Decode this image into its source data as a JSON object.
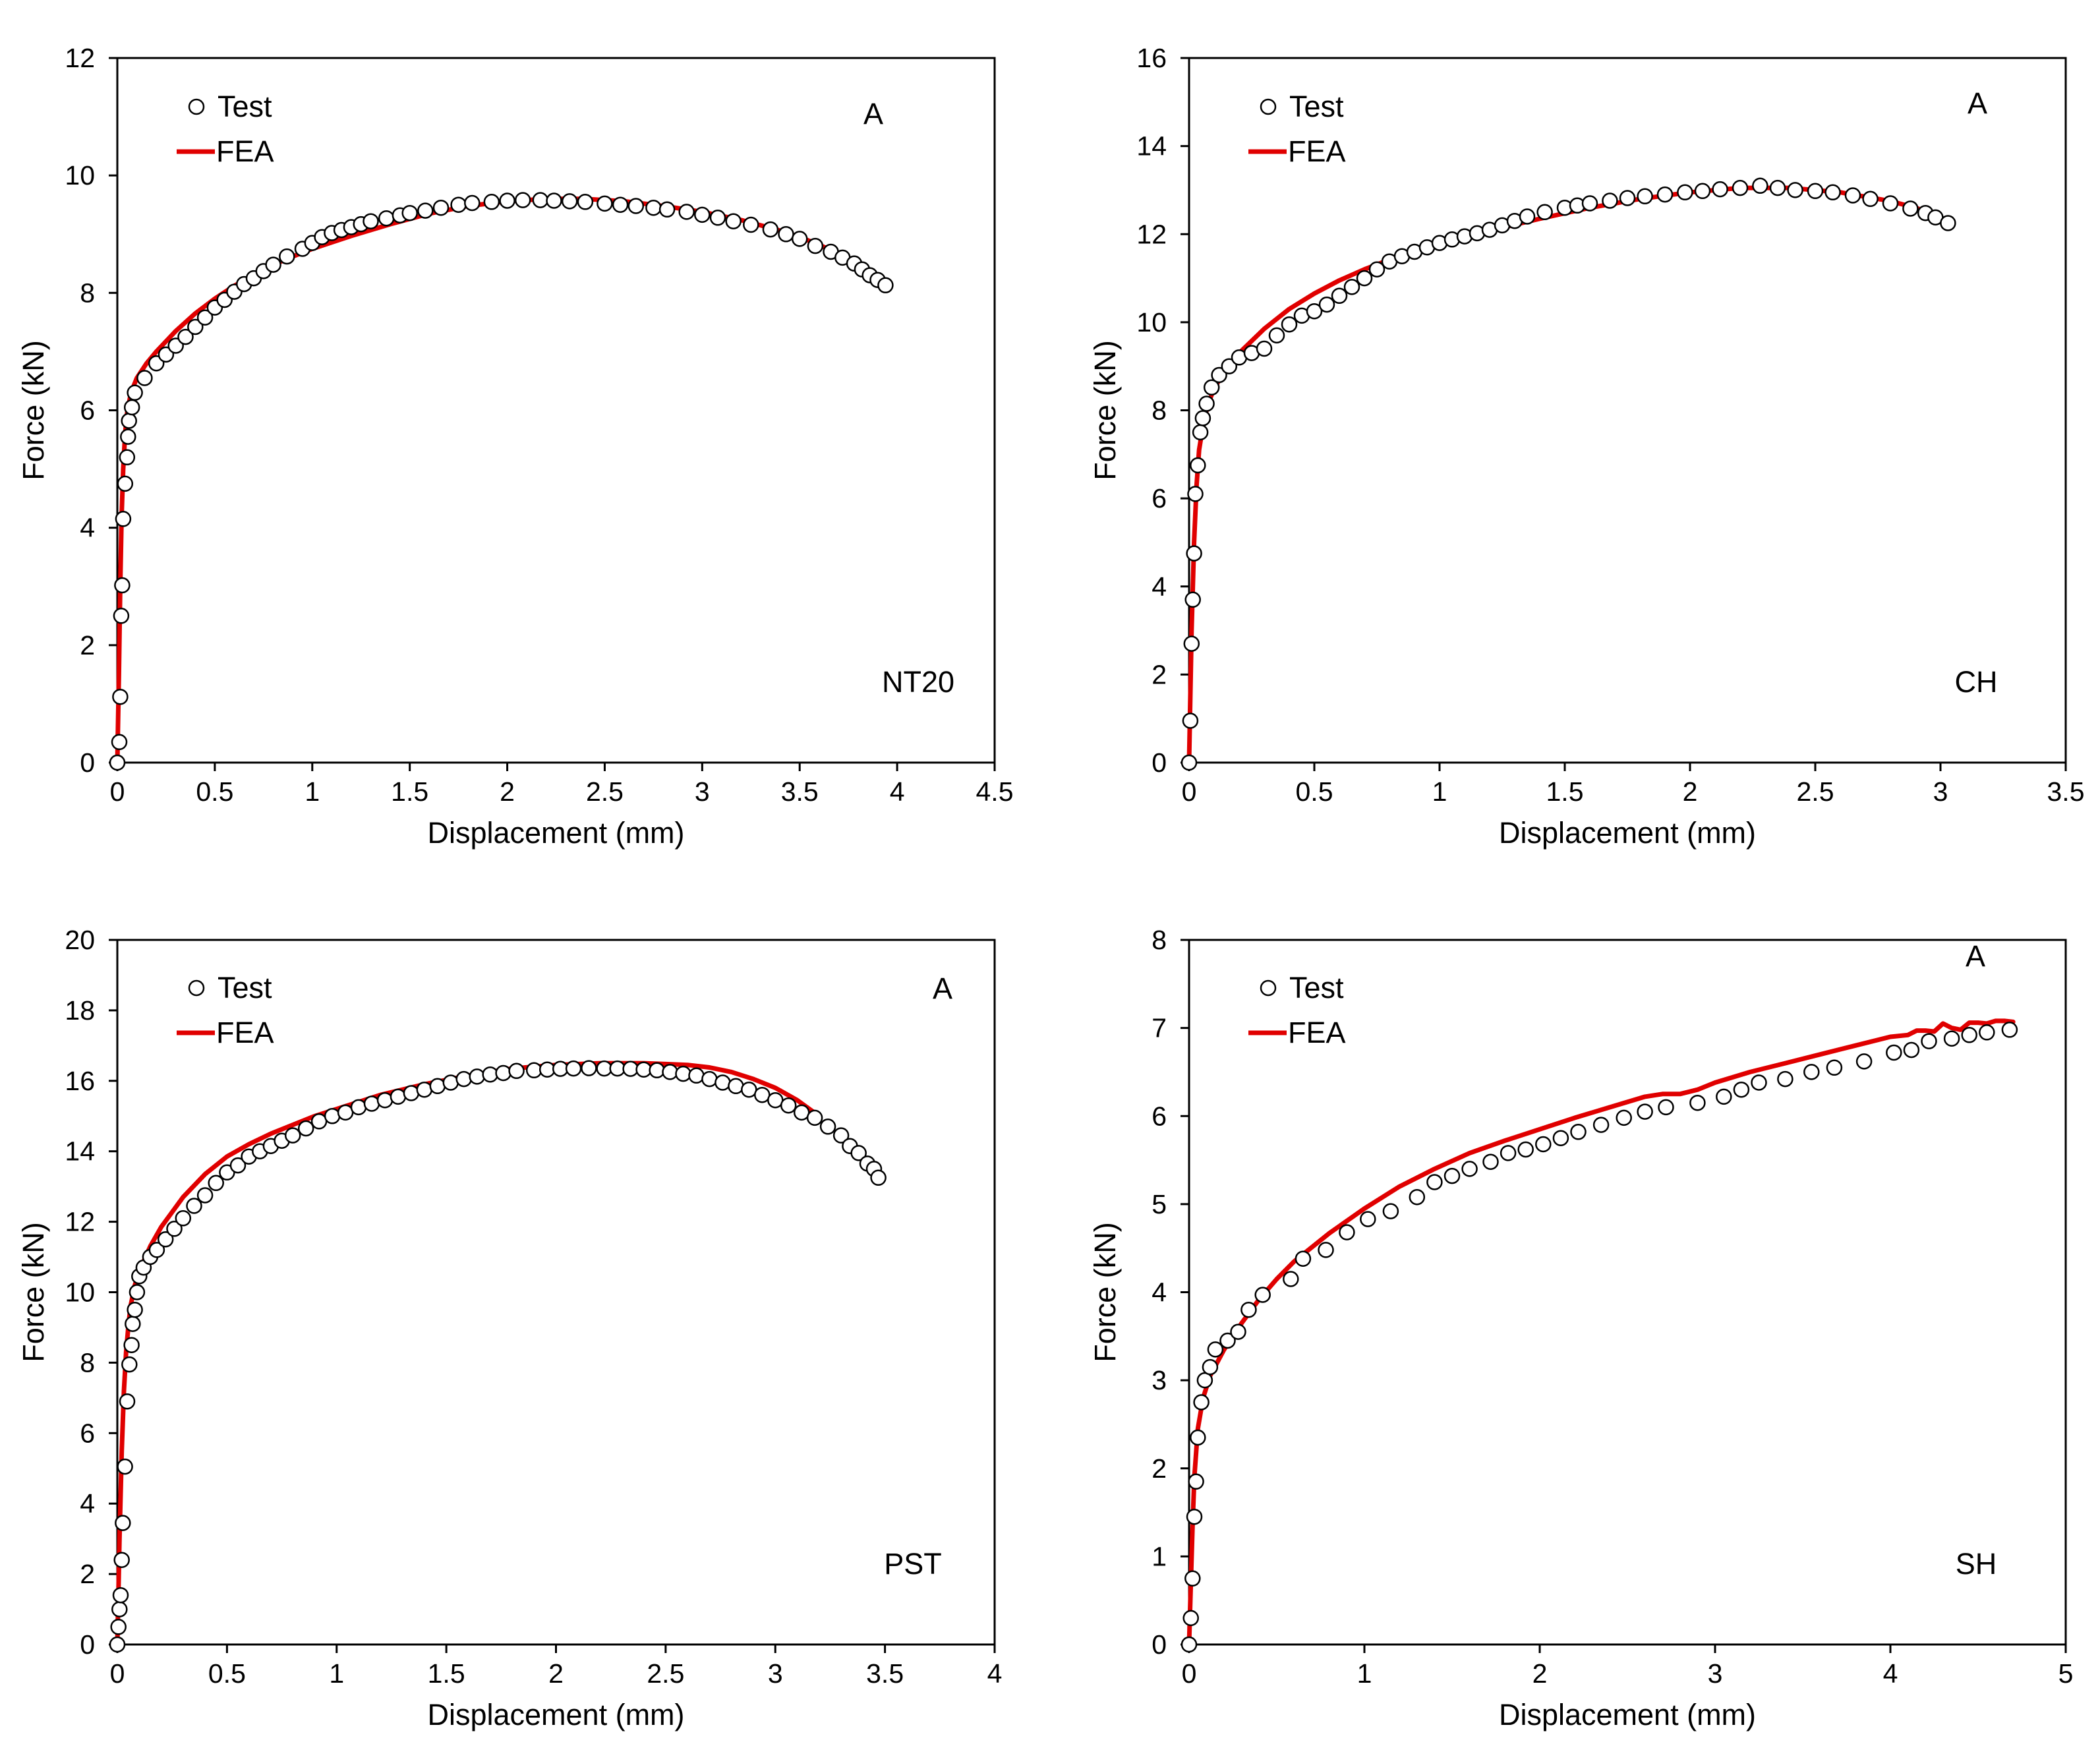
{
  "chart_data": [
    {
      "type": "scatter+line",
      "panel": "top-left",
      "xlabel": "Displacement (mm)",
      "ylabel": "Force (kN)",
      "xlim": [
        0,
        4.5
      ],
      "ylim": [
        0,
        12
      ],
      "xticks": [
        0,
        0.5,
        1,
        1.5,
        2,
        2.5,
        3,
        3.5,
        4,
        4.5
      ],
      "yticks": [
        0,
        2,
        4,
        6,
        8,
        10,
        12
      ],
      "xtick_labels": [
        "0",
        "0.5",
        "1",
        "1.5",
        "2",
        "2.5",
        "3",
        "3.5",
        "4",
        "4.5"
      ],
      "ytick_labels": [
        "0",
        "2",
        "4",
        "6",
        "8",
        "10",
        "12"
      ],
      "legend": {
        "position": "top-left",
        "test_label": "Test",
        "fea_label": "FEA"
      },
      "annotation_top": "A",
      "annotation_bottom": "NT20",
      "series": [
        {
          "name": "Test",
          "style": "open-circle",
          "x": [
            0,
            0.01,
            0.015,
            0.02,
            0.025,
            0.03,
            0.04,
            0.05,
            0.055,
            0.06,
            0.075,
            0.09,
            0.14,
            0.2,
            0.25,
            0.3,
            0.35,
            0.4,
            0.45,
            0.5,
            0.55,
            0.6,
            0.65,
            0.7,
            0.75,
            0.8,
            0.87,
            0.95,
            1.0,
            1.05,
            1.1,
            1.15,
            1.2,
            1.25,
            1.3,
            1.38,
            1.45,
            1.5,
            1.58,
            1.66,
            1.75,
            1.82,
            1.92,
            2.0,
            2.08,
            2.17,
            2.24,
            2.32,
            2.4,
            2.5,
            2.58,
            2.66,
            2.75,
            2.82,
            2.92,
            3.0,
            3.08,
            3.16,
            3.25,
            3.35,
            3.43,
            3.5,
            3.58,
            3.66,
            3.72,
            3.78,
            3.82,
            3.86,
            3.9,
            3.94
          ],
          "y": [
            0,
            0.35,
            1.12,
            2.5,
            3.02,
            4.15,
            4.75,
            5.2,
            5.55,
            5.82,
            6.05,
            6.3,
            6.55,
            6.8,
            6.95,
            7.1,
            7.25,
            7.42,
            7.58,
            7.75,
            7.88,
            8.02,
            8.15,
            8.25,
            8.37,
            8.48,
            8.62,
            8.75,
            8.85,
            8.95,
            9.02,
            9.07,
            9.12,
            9.17,
            9.22,
            9.27,
            9.32,
            9.36,
            9.4,
            9.45,
            9.5,
            9.53,
            9.55,
            9.57,
            9.58,
            9.58,
            9.57,
            9.56,
            9.55,
            9.52,
            9.5,
            9.48,
            9.45,
            9.42,
            9.38,
            9.33,
            9.28,
            9.22,
            9.16,
            9.08,
            9.0,
            8.92,
            8.8,
            8.7,
            8.6,
            8.5,
            8.4,
            8.3,
            8.22,
            8.13
          ]
        },
        {
          "name": "FEA",
          "style": "red-line",
          "x": [
            0,
            0.008,
            0.015,
            0.022,
            0.03,
            0.04,
            0.05,
            0.07,
            0.1,
            0.15,
            0.2,
            0.3,
            0.4,
            0.5,
            0.6,
            0.7,
            0.8,
            0.9,
            1.0,
            1.2,
            1.4,
            1.6,
            1.8,
            2.0,
            2.2,
            2.4,
            2.6,
            2.8,
            3.0,
            3.2,
            3.4,
            3.5,
            3.6,
            3.7,
            3.8,
            3.9
          ],
          "y": [
            0,
            1.5,
            3.0,
            4.2,
            5.0,
            5.6,
            5.95,
            6.3,
            6.55,
            6.8,
            7.0,
            7.35,
            7.65,
            7.9,
            8.12,
            8.3,
            8.48,
            8.62,
            8.75,
            8.97,
            9.17,
            9.35,
            9.48,
            9.56,
            9.6,
            9.6,
            9.56,
            9.48,
            9.38,
            9.24,
            9.06,
            8.95,
            8.82,
            8.66,
            8.48,
            8.28
          ]
        }
      ]
    },
    {
      "type": "scatter+line",
      "panel": "top-right",
      "xlabel": "Displacement (mm)",
      "ylabel": "Force (kN)",
      "xlim": [
        0,
        3.5
      ],
      "ylim": [
        0,
        16
      ],
      "xticks": [
        0,
        0.5,
        1,
        1.5,
        2,
        2.5,
        3,
        3.5
      ],
      "yticks": [
        0,
        2,
        4,
        6,
        8,
        10,
        12,
        14,
        16
      ],
      "xtick_labels": [
        "0",
        "0.5",
        "1",
        "1.5",
        "2",
        "2.5",
        "3",
        "3.5"
      ],
      "ytick_labels": [
        "0",
        "2",
        "4",
        "6",
        "8",
        "10",
        "12",
        "14",
        "16"
      ],
      "legend": {
        "position": "top-left",
        "test_label": "Test",
        "fea_label": "FEA"
      },
      "annotation_top": "A",
      "annotation_bottom": "CH",
      "series": [
        {
          "name": "Test",
          "style": "open-circle",
          "x": [
            0,
            0.005,
            0.01,
            0.015,
            0.02,
            0.025,
            0.035,
            0.045,
            0.055,
            0.07,
            0.09,
            0.12,
            0.16,
            0.2,
            0.25,
            0.3,
            0.35,
            0.4,
            0.45,
            0.5,
            0.55,
            0.6,
            0.65,
            0.7,
            0.75,
            0.8,
            0.85,
            0.9,
            0.95,
            1.0,
            1.05,
            1.1,
            1.15,
            1.2,
            1.25,
            1.3,
            1.35,
            1.42,
            1.5,
            1.55,
            1.6,
            1.68,
            1.75,
            1.82,
            1.9,
            1.98,
            2.05,
            2.12,
            2.2,
            2.28,
            2.35,
            2.42,
            2.5,
            2.57,
            2.65,
            2.72,
            2.8,
            2.88,
            2.94,
            2.98,
            3.03
          ],
          "y": [
            0,
            0.95,
            2.7,
            3.7,
            4.75,
            6.1,
            6.75,
            7.5,
            7.82,
            8.15,
            8.52,
            8.8,
            9.0,
            9.2,
            9.3,
            9.4,
            9.7,
            9.95,
            10.15,
            10.25,
            10.4,
            10.6,
            10.8,
            11.0,
            11.2,
            11.38,
            11.5,
            11.6,
            11.7,
            11.8,
            11.88,
            11.95,
            12.02,
            12.1,
            12.2,
            12.3,
            12.4,
            12.5,
            12.6,
            12.65,
            12.7,
            12.76,
            12.82,
            12.86,
            12.9,
            12.95,
            12.98,
            13.02,
            13.05,
            13.1,
            13.05,
            13.0,
            12.98,
            12.95,
            12.88,
            12.8,
            12.7,
            12.58,
            12.48,
            12.38,
            12.25
          ]
        },
        {
          "name": "FEA",
          "style": "red-line",
          "x": [
            0,
            0.005,
            0.01,
            0.02,
            0.03,
            0.04,
            0.06,
            0.08,
            0.1,
            0.15,
            0.2,
            0.3,
            0.4,
            0.5,
            0.6,
            0.7,
            0.8,
            0.9,
            1.0,
            1.2,
            1.4,
            1.6,
            1.8,
            2.0,
            2.2,
            2.4,
            2.6,
            2.8,
            2.9,
            3.0
          ],
          "y": [
            0,
            1.5,
            3.0,
            5.0,
            6.3,
            7.1,
            7.8,
            8.2,
            8.5,
            8.95,
            9.3,
            9.85,
            10.3,
            10.65,
            10.95,
            11.2,
            11.42,
            11.62,
            11.78,
            12.08,
            12.35,
            12.6,
            12.8,
            12.95,
            13.05,
            13.05,
            12.95,
            12.75,
            12.6,
            12.4
          ]
        }
      ]
    },
    {
      "type": "scatter+line",
      "panel": "bottom-left",
      "xlabel": "Displacement (mm)",
      "ylabel": "Force (kN)",
      "xlim": [
        0,
        4
      ],
      "ylim": [
        0,
        20
      ],
      "xticks": [
        0,
        0.5,
        1,
        1.5,
        2,
        2.5,
        3,
        3.5,
        4
      ],
      "yticks": [
        0,
        2,
        4,
        6,
        8,
        10,
        12,
        14,
        16,
        18,
        20
      ],
      "xtick_labels": [
        "0",
        "0.5",
        "1",
        "1.5",
        "2",
        "2.5",
        "3",
        "3.5",
        "4"
      ],
      "ytick_labels": [
        "0",
        "2",
        "4",
        "6",
        "8",
        "10",
        "12",
        "14",
        "16",
        "18",
        "20"
      ],
      "legend": {
        "position": "top-left",
        "test_label": "Test",
        "fea_label": "FEA"
      },
      "annotation_top": "A",
      "annotation_bottom": "PST",
      "series": [
        {
          "name": "Test",
          "style": "open-circle",
          "x": [
            0,
            0.005,
            0.01,
            0.015,
            0.02,
            0.025,
            0.035,
            0.045,
            0.055,
            0.065,
            0.07,
            0.08,
            0.09,
            0.1,
            0.12,
            0.15,
            0.18,
            0.22,
            0.26,
            0.3,
            0.35,
            0.4,
            0.45,
            0.5,
            0.55,
            0.6,
            0.65,
            0.7,
            0.75,
            0.8,
            0.86,
            0.92,
            0.98,
            1.04,
            1.1,
            1.16,
            1.22,
            1.28,
            1.34,
            1.4,
            1.46,
            1.52,
            1.58,
            1.64,
            1.7,
            1.76,
            1.82,
            1.9,
            1.96,
            2.02,
            2.08,
            2.15,
            2.22,
            2.28,
            2.34,
            2.4,
            2.46,
            2.52,
            2.58,
            2.64,
            2.7,
            2.76,
            2.82,
            2.88,
            2.94,
            3.0,
            3.06,
            3.12,
            3.18,
            3.24,
            3.3,
            3.34,
            3.38,
            3.42,
            3.45,
            3.47
          ],
          "y": [
            0,
            0.5,
            1.0,
            1.4,
            2.4,
            3.45,
            5.05,
            6.9,
            7.95,
            8.5,
            9.1,
            9.5,
            10.0,
            10.45,
            10.7,
            11.0,
            11.2,
            11.5,
            11.8,
            12.1,
            12.45,
            12.75,
            13.1,
            13.4,
            13.6,
            13.85,
            14.0,
            14.15,
            14.3,
            14.45,
            14.65,
            14.85,
            15.0,
            15.1,
            15.25,
            15.35,
            15.45,
            15.55,
            15.65,
            15.75,
            15.85,
            15.95,
            16.05,
            16.12,
            16.18,
            16.22,
            16.28,
            16.3,
            16.32,
            16.34,
            16.35,
            16.36,
            16.35,
            16.35,
            16.34,
            16.32,
            16.3,
            16.25,
            16.2,
            16.15,
            16.05,
            15.95,
            15.85,
            15.75,
            15.6,
            15.45,
            15.3,
            15.1,
            14.95,
            14.7,
            14.45,
            14.15,
            13.95,
            13.65,
            13.5,
            13.25
          ]
        },
        {
          "name": "FEA",
          "style": "red-line",
          "x": [
            0,
            0.005,
            0.01,
            0.02,
            0.03,
            0.04,
            0.05,
            0.06,
            0.08,
            0.1,
            0.15,
            0.2,
            0.3,
            0.4,
            0.5,
            0.6,
            0.7,
            0.8,
            0.9,
            1.0,
            1.2,
            1.4,
            1.6,
            1.8,
            2.0,
            2.2,
            2.4,
            2.6,
            2.7,
            2.8,
            2.9,
            3.0,
            3.1,
            3.2
          ],
          "y": [
            0,
            1.5,
            3.0,
            5.5,
            7.2,
            8.3,
            9.0,
            9.6,
            10.2,
            10.6,
            11.3,
            11.85,
            12.7,
            13.35,
            13.85,
            14.2,
            14.5,
            14.75,
            15.0,
            15.2,
            15.6,
            15.9,
            16.15,
            16.35,
            16.45,
            16.5,
            16.5,
            16.45,
            16.38,
            16.25,
            16.05,
            15.8,
            15.45,
            15.0
          ]
        }
      ]
    },
    {
      "type": "scatter+line",
      "panel": "bottom-right",
      "xlabel": "Displacement (mm)",
      "ylabel": "Force (kN)",
      "xlim": [
        0,
        5
      ],
      "ylim": [
        0,
        8
      ],
      "xticks": [
        0,
        1,
        2,
        3,
        4,
        5
      ],
      "yticks": [
        0,
        1,
        2,
        3,
        4,
        5,
        6,
        7,
        8
      ],
      "xtick_labels": [
        "0",
        "1",
        "2",
        "3",
        "4",
        "5"
      ],
      "ytick_labels": [
        "0",
        "1",
        "2",
        "3",
        "4",
        "5",
        "6",
        "7",
        "8"
      ],
      "legend": {
        "position": "top-left",
        "test_label": "Test",
        "fea_label": "FEA"
      },
      "annotation_top": "A",
      "annotation_bottom": "SH",
      "series": [
        {
          "name": "Test",
          "style": "open-circle",
          "x": [
            0,
            0.01,
            0.02,
            0.03,
            0.04,
            0.05,
            0.07,
            0.09,
            0.12,
            0.15,
            0.22,
            0.28,
            0.34,
            0.42,
            0.58,
            0.65,
            0.78,
            0.9,
            1.02,
            1.15,
            1.3,
            1.4,
            1.5,
            1.6,
            1.72,
            1.82,
            1.92,
            2.02,
            2.12,
            2.22,
            2.35,
            2.48,
            2.6,
            2.72,
            2.9,
            3.05,
            3.15,
            3.25,
            3.4,
            3.55,
            3.68,
            3.85,
            4.02,
            4.12,
            4.22,
            4.35,
            4.45,
            4.55,
            4.68
          ],
          "y": [
            0,
            0.3,
            0.75,
            1.45,
            1.85,
            2.35,
            2.75,
            3.0,
            3.15,
            3.35,
            3.45,
            3.55,
            3.8,
            3.97,
            4.15,
            4.38,
            4.48,
            4.68,
            4.83,
            4.92,
            5.08,
            5.25,
            5.32,
            5.4,
            5.48,
            5.58,
            5.62,
            5.68,
            5.75,
            5.82,
            5.9,
            5.98,
            6.05,
            6.1,
            6.15,
            6.22,
            6.3,
            6.38,
            6.42,
            6.5,
            6.55,
            6.62,
            6.72,
            6.75,
            6.85,
            6.88,
            6.92,
            6.95,
            6.98
          ]
        },
        {
          "name": "FEA",
          "style": "red-line",
          "x": [
            0,
            0.01,
            0.02,
            0.03,
            0.05,
            0.08,
            0.12,
            0.2,
            0.3,
            0.4,
            0.5,
            0.6,
            0.8,
            1.0,
            1.2,
            1.4,
            1.6,
            1.8,
            2.0,
            2.2,
            2.4,
            2.6,
            2.7,
            2.8,
            2.9,
            3.0,
            3.2,
            3.4,
            3.6,
            3.8,
            4.0,
            4.1,
            4.15,
            4.2,
            4.25,
            4.3,
            4.35,
            4.4,
            4.45,
            4.5,
            4.55,
            4.6,
            4.65,
            4.7
          ],
          "y": [
            0,
            0.7,
            1.35,
            1.9,
            2.45,
            2.8,
            3.05,
            3.35,
            3.65,
            3.92,
            4.15,
            4.35,
            4.67,
            4.95,
            5.2,
            5.4,
            5.58,
            5.72,
            5.85,
            5.98,
            6.1,
            6.22,
            6.25,
            6.25,
            6.3,
            6.38,
            6.5,
            6.6,
            6.7,
            6.8,
            6.9,
            6.92,
            6.97,
            6.97,
            6.96,
            7.05,
            7.0,
            6.98,
            7.06,
            7.06,
            7.05,
            7.08,
            7.08,
            7.07
          ]
        }
      ]
    }
  ]
}
